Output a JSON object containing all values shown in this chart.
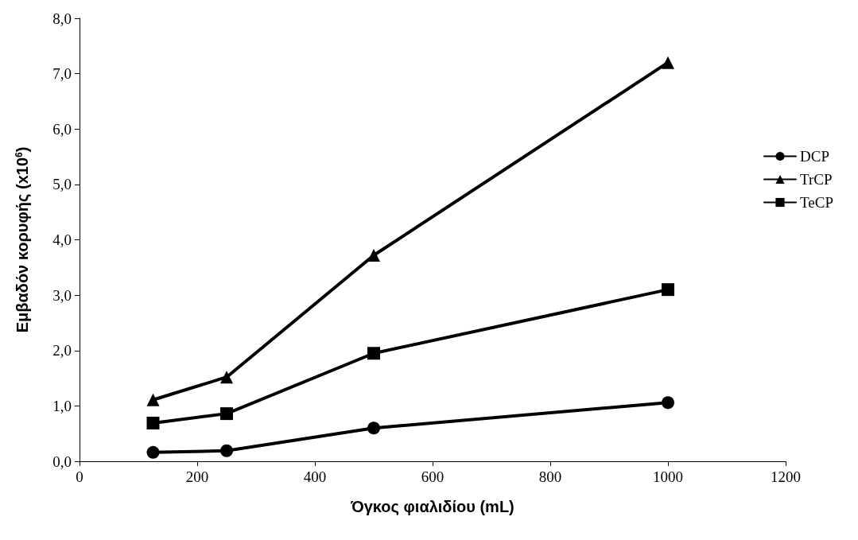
{
  "chart_data": {
    "type": "line",
    "xlabel": "Όγκος φιαλιδίου (mL)",
    "ylabel": "Εμβαδόν κορυφής (x10$^{6}$)",
    "x": [
      125,
      250,
      500,
      1000
    ],
    "series": [
      {
        "name": "DCP",
        "color": "#000000",
        "marker": "circle",
        "values": [
          0.16,
          0.19,
          0.6,
          1.06
        ]
      },
      {
        "name": "TrCP",
        "color": "#000000",
        "marker": "triangle",
        "values": [
          1.11,
          1.52,
          3.72,
          7.2
        ]
      },
      {
        "name": "TeCP",
        "color": "#000000",
        "marker": "square",
        "values": [
          0.69,
          0.86,
          1.95,
          3.1
        ]
      }
    ],
    "xlim": [
      0,
      1200
    ],
    "xticks": [
      0,
      200,
      400,
      600,
      800,
      1000,
      1200
    ],
    "ylim": [
      0,
      8
    ],
    "yticks": [
      {
        "value": 0,
        "label": "0,0"
      },
      {
        "value": 1,
        "label": "1,0"
      },
      {
        "value": 2,
        "label": "2,0"
      },
      {
        "value": 3,
        "label": "3,0"
      },
      {
        "value": 4,
        "label": "4,0"
      },
      {
        "value": 5,
        "label": "5,0"
      },
      {
        "value": 6,
        "label": "6,0"
      },
      {
        "value": 7,
        "label": "7,0"
      },
      {
        "value": 8,
        "label": "8,0"
      }
    ],
    "grid": false,
    "legend": "right",
    "line_style": "solid"
  }
}
